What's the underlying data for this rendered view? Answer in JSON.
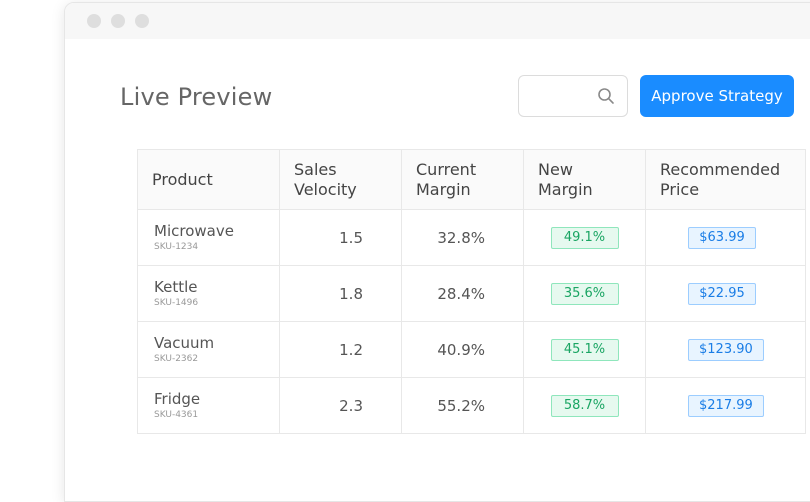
{
  "page": {
    "title": "Live Preview"
  },
  "search": {
    "placeholder": "",
    "value": ""
  },
  "toolbar": {
    "approve_label": "Approve Strategy"
  },
  "colors": {
    "accent": "#1a8cff",
    "new_margin": "#1aa563",
    "price": "#1a7de6"
  },
  "icons": {
    "search": "search-icon"
  },
  "table": {
    "headers": {
      "product": "Product",
      "sales_velocity": "Sales Velocity",
      "current_margin": "Current Margin",
      "new_margin": "New Margin",
      "recommended_price": "Recommended Price"
    },
    "rows": [
      {
        "product": "Microwave",
        "sku": "SKU-1234",
        "sales_velocity": "1.5",
        "current_margin": "32.8%",
        "new_margin": "49.1%",
        "recommended_price": "$63.99"
      },
      {
        "product": "Kettle",
        "sku": "SKU-1496",
        "sales_velocity": "1.8",
        "current_margin": "28.4%",
        "new_margin": "35.6%",
        "recommended_price": "$22.95"
      },
      {
        "product": "Vacuum",
        "sku": "SKU-2362",
        "sales_velocity": "1.2",
        "current_margin": "40.9%",
        "new_margin": "45.1%",
        "recommended_price": "$123.90"
      },
      {
        "product": "Fridge",
        "sku": "SKU-4361",
        "sales_velocity": "2.3",
        "current_margin": "55.2%",
        "new_margin": "58.7%",
        "recommended_price": "$217.99"
      }
    ]
  }
}
